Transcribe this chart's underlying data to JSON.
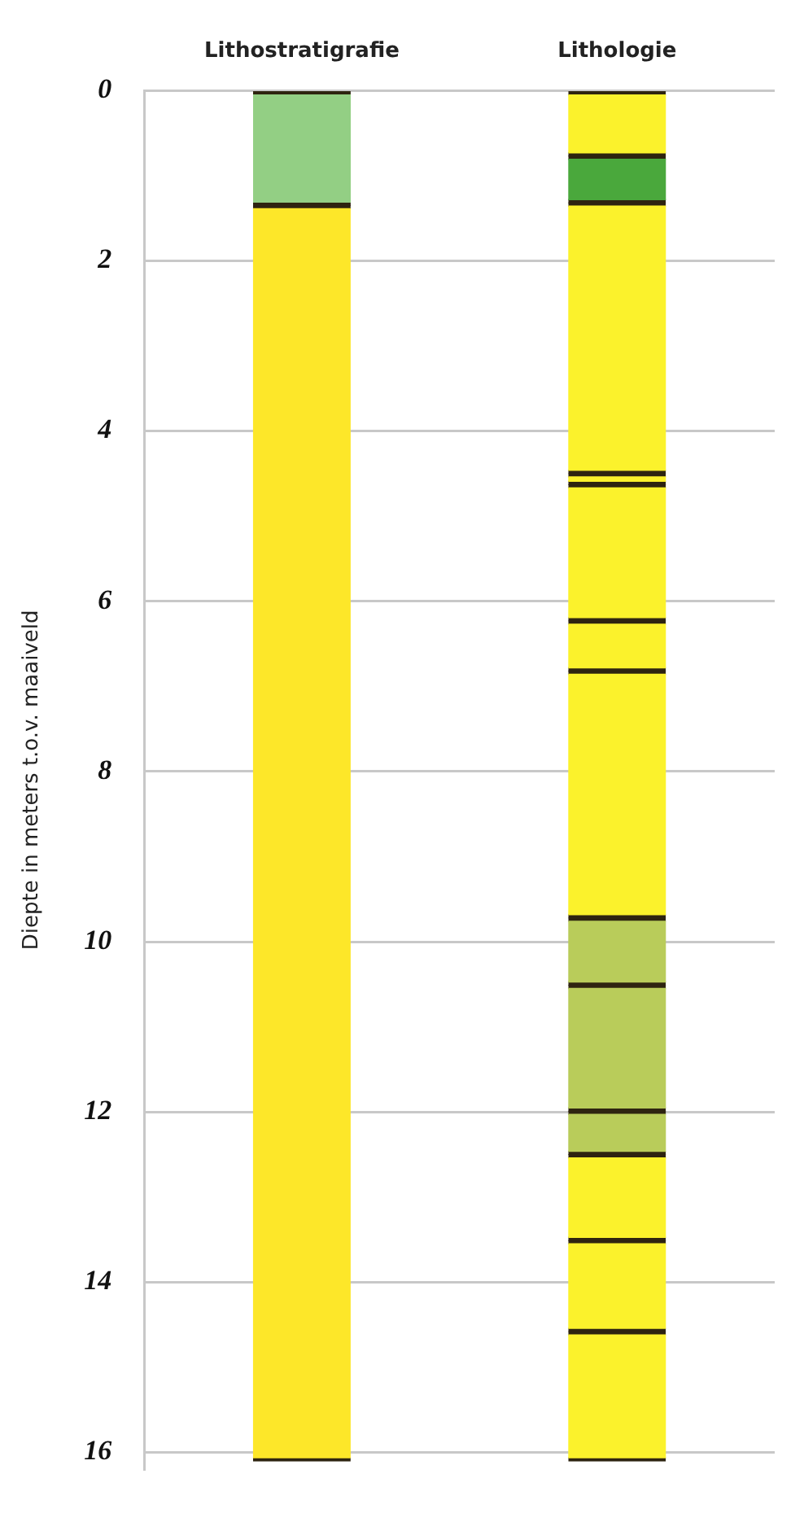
{
  "chart_data": {
    "type": "bar",
    "stacked": true,
    "categories": [
      "Lithostratigrafie",
      "Lithologie"
    ],
    "ylabel": "Diepte in meters t.o.v. maaiveld",
    "ylim": [
      16.2,
      0
    ],
    "yticks": [
      0,
      2,
      4,
      6,
      8,
      10,
      12,
      14,
      16
    ],
    "grid": "y",
    "legend": false,
    "series": [
      {
        "values": [
          1.35,
          0.77
        ],
        "colors": [
          "#93cf84",
          "#fbf22c"
        ]
      },
      {
        "values": [
          14.75,
          0.55
        ],
        "colors": [
          "#fde729",
          "#4aa83c"
        ]
      },
      {
        "values": [
          null,
          3.18
        ],
        "colors": [
          "#fde729",
          "#fbf22c"
        ]
      },
      {
        "values": [
          null,
          0.13
        ],
        "colors": [
          "#fde729",
          "#fbf22c"
        ]
      },
      {
        "values": [
          null,
          1.6
        ],
        "colors": [
          "#fde729",
          "#fbf22c"
        ]
      },
      {
        "values": [
          null,
          0.59
        ],
        "colors": [
          "#fde729",
          "#fbf22c"
        ]
      },
      {
        "values": [
          null,
          2.9
        ],
        "colors": [
          "#fde729",
          "#fbf22c"
        ]
      },
      {
        "values": [
          null,
          0.79
        ],
        "colors": [
          "#fde729",
          "#b9cc5a"
        ]
      },
      {
        "values": [
          null,
          1.48
        ],
        "colors": [
          "#fde729",
          "#b9cc5a"
        ]
      },
      {
        "values": [
          null,
          0.51
        ],
        "colors": [
          "#fde729",
          "#b9cc5a"
        ]
      },
      {
        "values": [
          null,
          1.01
        ],
        "colors": [
          "#fde729",
          "#fbf22c"
        ]
      },
      {
        "values": [
          null,
          1.07
        ],
        "colors": [
          "#fde729",
          "#fbf22c"
        ]
      },
      {
        "values": [
          null,
          1.52
        ],
        "colors": [
          "#fde729",
          "#fbf22c"
        ]
      }
    ]
  }
}
